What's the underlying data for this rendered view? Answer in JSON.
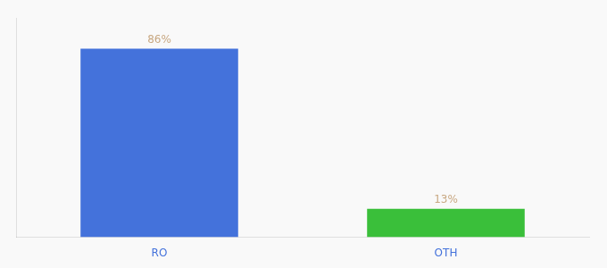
{
  "chart_data": {
    "type": "bar",
    "categories": [
      "RO",
      "OTH"
    ],
    "values": [
      86,
      13
    ],
    "value_labels": [
      "86%",
      "13%"
    ],
    "colors": [
      "#4472db",
      "#3abf3a"
    ],
    "ylim": [
      0,
      100
    ],
    "grid": false,
    "data_labels": true,
    "tick_labels": "x"
  }
}
